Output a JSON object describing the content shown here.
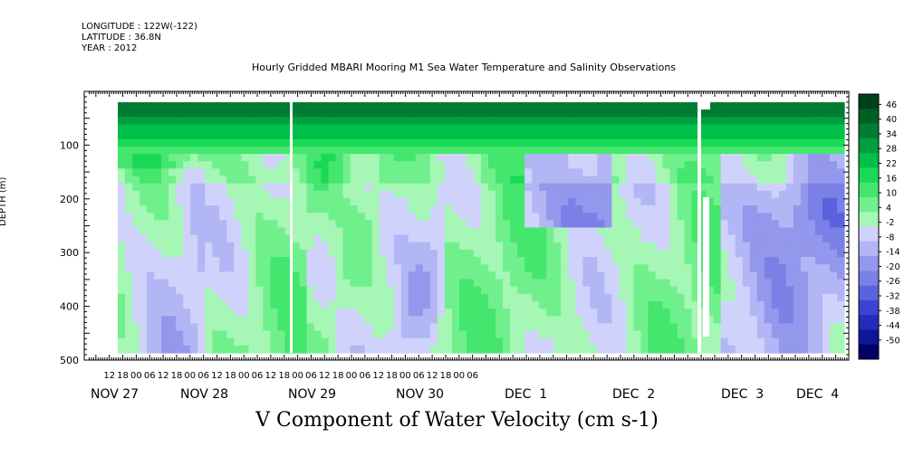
{
  "header": {
    "longitude": "LONGITUDE : 122W(-122)",
    "latitude": "LATITUDE : 36.8N",
    "year": "YEAR : 2012"
  },
  "chart_data": {
    "type": "heatmap",
    "title": "Hourly Gridded MBARI Mooring M1 Sea Water Temperature and Salinity Observations",
    "xlabel": "V Component of Water Velocity (cm s-1)",
    "ylabel": "DEPTH (m)",
    "y_reversed": true,
    "ylim": [
      500,
      0
    ],
    "y_ticks": [
      100,
      200,
      300,
      400,
      500
    ],
    "x_hour_ticks": [
      "12",
      "18",
      "00",
      "06",
      "12",
      "18",
      "00",
      "06",
      "12",
      "18",
      "00",
      "06",
      "12",
      "18",
      "00",
      "06",
      "12",
      "18",
      "00",
      "06",
      "12",
      "18",
      "00",
      "06",
      "12",
      "18",
      "00",
      "06"
    ],
    "x_day_labels": [
      "NOV 27",
      "NOV 28",
      "NOV 29",
      "NOV 30",
      "DEC  1",
      "DEC  2",
      "DEC  3",
      "DEC  4"
    ],
    "colorbar_labels": [
      "46",
      "40",
      "34",
      "28",
      "22",
      "16",
      "10",
      "4",
      "-2",
      "-8",
      "-14",
      "-20",
      "-26",
      "-32",
      "-38",
      "-44",
      "-50"
    ],
    "colorbar_colors": [
      "#00401a",
      "#005f26",
      "#007d33",
      "#009e3e",
      "#00bf48",
      "#1ad955",
      "#44e66e",
      "#70f08c",
      "#a6f6b5",
      "#cfd2fb",
      "#b2b6f5",
      "#9398ec",
      "#7a80e6",
      "#5a62dd",
      "#3b44d2",
      "#232bc0",
      "#0f1698",
      "#000066"
    ],
    "value_range": [
      -50,
      46
    ],
    "data_notes": "Velocity field: surface layer (0-100 m) strongly positive (~20-40 cm/s), mid/deep layer mixing of weak positive (~0-15) and negative (~-5 to -25) with strongest negatives near 150-200 m on Dec 1-3."
  }
}
